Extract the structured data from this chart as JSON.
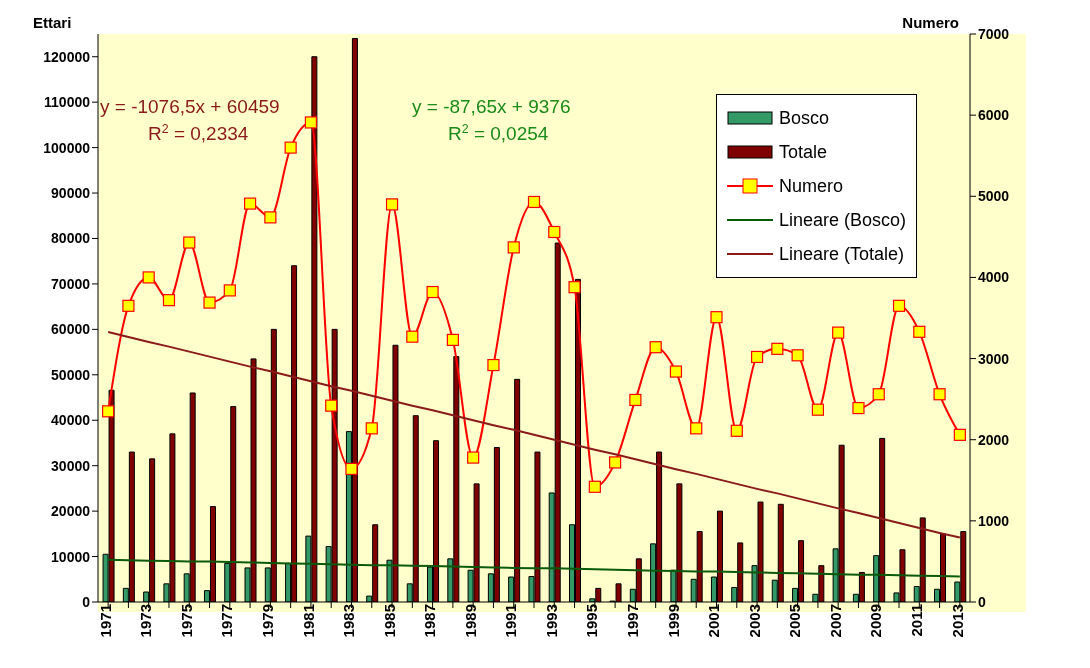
{
  "chart_data": {
    "type": "bar",
    "ylabel": "Ettari",
    "y2label": "Numero",
    "categories": [
      "1971",
      null,
      "1973",
      null,
      "1975",
      null,
      "1977",
      null,
      "1979",
      null,
      "1981",
      null,
      "1983",
      null,
      "1985",
      null,
      "1987",
      null,
      "1989",
      null,
      "1991",
      null,
      "1993",
      null,
      "1995",
      null,
      "1997",
      null,
      "1999",
      null,
      "2001",
      null,
      "2003",
      null,
      "2005",
      null,
      "2007",
      null,
      "2009",
      null,
      "2011",
      null,
      "2013"
    ],
    "series": [
      {
        "name": "Bosco",
        "color": "#339966",
        "values": [
          10500,
          3000,
          2200,
          4000,
          6200,
          2500,
          8500,
          7500,
          7500,
          8500,
          14500,
          12200,
          37500,
          1300,
          9200,
          4000,
          7700,
          9500,
          7000,
          6200,
          5500,
          5600,
          24000,
          17000,
          700,
          200,
          2800,
          12800,
          7000,
          5000,
          5500,
          3200,
          8000,
          4800,
          3000,
          1700,
          11700,
          1700,
          10200,
          2000,
          3400,
          2800,
          4400
        ]
      },
      {
        "name": "Totale",
        "color": "#800000",
        "values": [
          46600,
          33000,
          31500,
          37000,
          46000,
          21000,
          43000,
          53500,
          60000,
          74000,
          120000,
          60000,
          124000,
          17000,
          56500,
          41000,
          35500,
          54000,
          26000,
          34000,
          49000,
          33000,
          79000,
          71000,
          3000,
          4000,
          9500,
          33000,
          26000,
          15500,
          20000,
          13000,
          22000,
          21500,
          13500,
          8000,
          34500,
          6500,
          36000,
          11500,
          18500,
          15000,
          15500
        ]
      },
      {
        "name": "Numero",
        "type": "line",
        "axis": "y2",
        "color": "#ff0000",
        "marker": "square",
        "values": [
          2350,
          3650,
          4000,
          3720,
          4430,
          3690,
          3840,
          4910,
          4740,
          5600,
          5910,
          2420,
          1640,
          2140,
          4900,
          3270,
          3820,
          3230,
          1780,
          2920,
          4370,
          4930,
          4560,
          3880,
          1420,
          1720,
          2490,
          3140,
          2840,
          2140,
          3510,
          2110,
          3020,
          3120,
          3040,
          2370,
          3320,
          2390,
          2560,
          3650,
          3330,
          2560,
          2060
        ]
      },
      {
        "name": "Lineare (Bosco)",
        "type": "line",
        "color": "#0b5a0b",
        "marker": "none",
        "values": [
          9300,
          9200,
          9100,
          9000,
          8900,
          8900,
          8800,
          8700,
          8600,
          8500,
          8400,
          8300,
          8200,
          8100,
          8100,
          8000,
          7900,
          7800,
          7700,
          7600,
          7500,
          7400,
          7400,
          7300,
          7200,
          7100,
          7000,
          6900,
          6800,
          6700,
          6700,
          6600,
          6500,
          6400,
          6300,
          6200,
          6100,
          6000,
          6000,
          5900,
          5800,
          5700,
          5600
        ]
      },
      {
        "name": "Lineare (Totale)",
        "type": "line",
        "color": "#8b1a1a",
        "marker": "none",
        "values": [
          59400,
          58300,
          57200,
          56200,
          55100,
          54000,
          52900,
          51800,
          50800,
          49700,
          48600,
          47500,
          46500,
          45400,
          44300,
          43200,
          42200,
          41100,
          40000,
          38900,
          37900,
          36800,
          35700,
          34600,
          33500,
          32500,
          31400,
          30300,
          29200,
          28200,
          27100,
          26000,
          24900,
          23900,
          22800,
          21700,
          20600,
          19600,
          18500,
          17400,
          16300,
          15200,
          14200
        ]
      }
    ],
    "annotations": [
      "y = -1076,5x + 60459",
      "R$^{2}$ = 0,2334",
      "y = -87,65x + 9376",
      "R$^{2}$ = 0,0254"
    ],
    "ylim": [
      0,
      125000
    ],
    "yticks": [
      0,
      10000,
      20000,
      30000,
      40000,
      50000,
      60000,
      70000,
      80000,
      90000,
      100000,
      110000,
      120000
    ],
    "y2lim": [
      0,
      7000
    ],
    "y2ticks": [
      0,
      1000,
      2000,
      3000,
      4000,
      5000,
      6000,
      7000
    ],
    "legend": "top right"
  }
}
